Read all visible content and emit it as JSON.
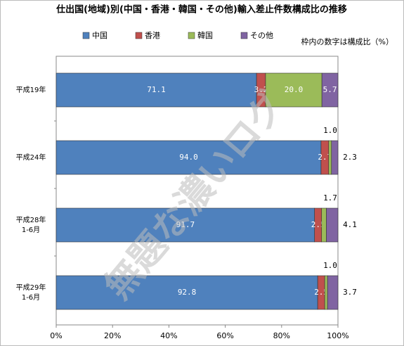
{
  "chart_data": {
    "type": "stacked-bar-horizontal",
    "title": "仕出国(地域)別(中国・香港・韓国・その他)輸入差止件数構成比の推移",
    "subtitle": "枠内の数字は構成比（%）",
    "watermark": "無題な濃いログ",
    "categories": [
      [
        "平成19年"
      ],
      [
        "平成24年"
      ],
      [
        "平成28年",
        "1-6月"
      ],
      [
        "平成29年",
        "1-6月"
      ]
    ],
    "series": [
      {
        "name": "中国",
        "color": "#4f81bd",
        "values": [
          71.1,
          94.0,
          91.7,
          92.8
        ],
        "value_labels": [
          "71.1",
          "94.0",
          "91.7",
          "92.8"
        ]
      },
      {
        "name": "香港",
        "color": "#c0504d",
        "values": [
          3.2,
          2.7,
          2.5,
          2.5
        ]
      },
      {
        "name": "韓国",
        "color": "#9bbb59",
        "values": [
          20.0,
          1.0,
          1.7,
          1.0
        ],
        "value_labels": [
          "20.0",
          "1.0",
          "1.7",
          "1.0"
        ]
      },
      {
        "name": "その他",
        "color": "#8064a2",
        "values": [
          5.7,
          2.3,
          4.1,
          3.7
        ]
      }
    ],
    "xlim": [
      0,
      100
    ],
    "xticks": [
      {
        "value": 0,
        "label": "0%"
      },
      {
        "value": 20,
        "label": "20%"
      },
      {
        "value": 40,
        "label": "40%"
      },
      {
        "value": 60,
        "label": "60%"
      },
      {
        "value": 80,
        "label": "80%"
      },
      {
        "value": 100,
        "label": "100%"
      }
    ]
  }
}
